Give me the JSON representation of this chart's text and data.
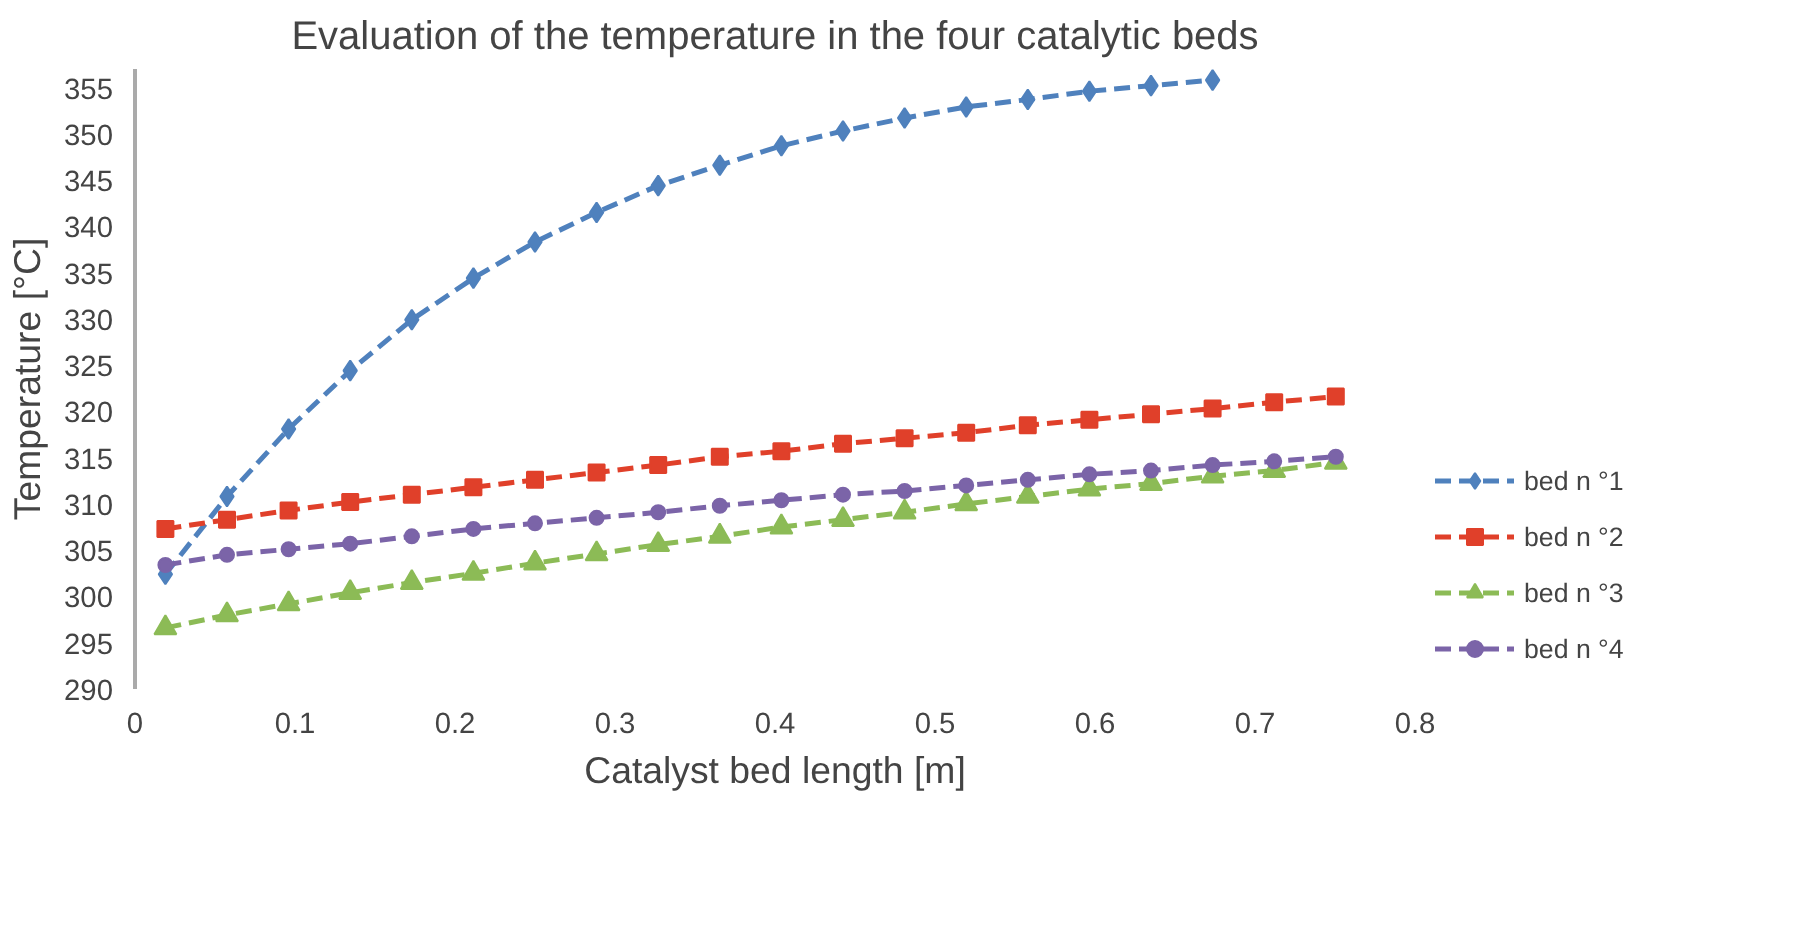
{
  "chart_data": {
    "type": "line",
    "title": "Evaluation of the temperature in the four catalytic beds",
    "xlabel": "Catalyst bed length [m]",
    "ylabel": "Temperature [°C]",
    "x": [
      0.019,
      0.0575,
      0.096,
      0.1345,
      0.173,
      0.2115,
      0.25,
      0.2885,
      0.327,
      0.3655,
      0.404,
      0.4425,
      0.481,
      0.5195,
      0.558,
      0.5965,
      0.635,
      0.6735,
      0.712,
      0.7505
    ],
    "series": [
      {
        "name": "bed n °1",
        "color": "#4f81bd",
        "marker": "diamond",
        "values": [
          302.4,
          310.8,
          318.1,
          324.4,
          329.9,
          334.4,
          338.3,
          341.5,
          344.4,
          346.6,
          348.7,
          350.3,
          351.7,
          352.9,
          353.7,
          354.6,
          355.2,
          355.8,
          null,
          null
        ]
      },
      {
        "name": "bed n °2",
        "color": "#e0402a",
        "marker": "square",
        "values": [
          307.3,
          308.3,
          309.3,
          310.2,
          311.0,
          311.8,
          312.6,
          313.4,
          314.2,
          315.1,
          315.7,
          316.5,
          317.1,
          317.7,
          318.5,
          319.1,
          319.7,
          320.3,
          321.0,
          321.6
        ]
      },
      {
        "name": "bed n °3",
        "color": "#8cbb56",
        "marker": "triangle",
        "values": [
          296.6,
          298.0,
          299.2,
          300.4,
          301.5,
          302.5,
          303.6,
          304.6,
          305.6,
          306.5,
          307.5,
          308.3,
          309.1,
          310.0,
          310.8,
          311.6,
          312.2,
          313.0,
          313.6,
          314.5
        ]
      },
      {
        "name": "bed n °4",
        "color": "#7b64a8",
        "marker": "circle",
        "values": [
          303.4,
          304.5,
          305.1,
          305.7,
          306.5,
          307.3,
          307.9,
          308.5,
          309.1,
          309.8,
          310.4,
          311.0,
          311.4,
          312.0,
          312.6,
          313.2,
          313.6,
          314.2,
          314.6,
          315.1
        ]
      }
    ],
    "xlim": [
      0,
      0.8
    ],
    "xticks": [
      0,
      0.1,
      0.2,
      0.3,
      0.4,
      0.5,
      0.6,
      0.7,
      0.8
    ],
    "ylim": [
      290,
      357
    ],
    "yticks": [
      290,
      295,
      300,
      305,
      310,
      315,
      320,
      325,
      330,
      335,
      340,
      345,
      350,
      355
    ],
    "legend": "right",
    "line_style": "dashed",
    "grid": false
  }
}
